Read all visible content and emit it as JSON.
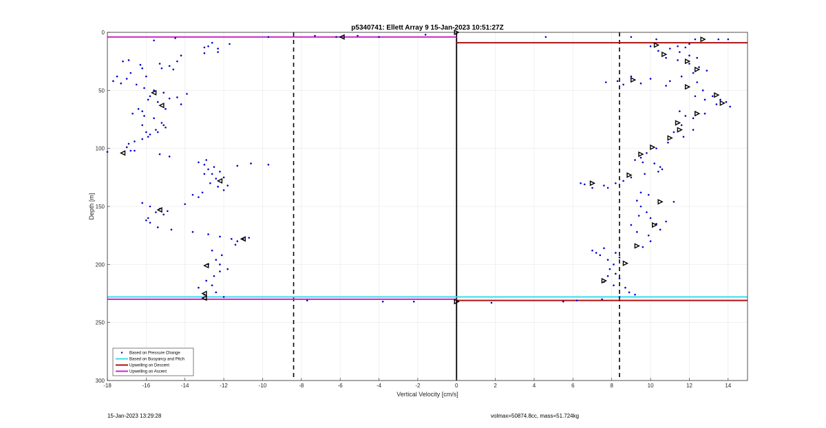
{
  "chart_data": {
    "type": "scatter",
    "title": "p5340741: Ellett Array 9 15-Jan-2023 10:51:27Z",
    "xlabel": "Vertical Velocity [cm/s]",
    "ylabel": "Depth [m]",
    "xlim": [
      -18,
      15
    ],
    "ylim": [
      0,
      300
    ],
    "y_reversed": true,
    "grid": true,
    "legend_position": "bottom-left",
    "xticks": [
      -18,
      -16,
      -14,
      -12,
      -10,
      -8,
      -6,
      -4,
      -2,
      0,
      2,
      4,
      6,
      8,
      10,
      12,
      14
    ],
    "yticks": [
      0,
      50,
      100,
      150,
      200,
      250,
      300
    ],
    "legend": [
      {
        "label": "Based on Pressure Change",
        "color": "#0000cc",
        "kind": "dot"
      },
      {
        "label": "Based on Buoyancy and Pitch",
        "color": "#33ddee",
        "kind": "line"
      },
      {
        "label": "Upwelling on Descent",
        "color": "#aa1111",
        "kind": "line"
      },
      {
        "label": "Upwelling on Ascent",
        "color": "#cc22cc",
        "kind": "line"
      }
    ],
    "series": [
      {
        "name": "Based on Pressure Change",
        "color": "#0000cc",
        "points": [
          [
            -15.6,
            7
          ],
          [
            -14.5,
            5
          ],
          [
            -13.0,
            18
          ],
          [
            -12.8,
            12
          ],
          [
            -12.6,
            9
          ],
          [
            -12.3,
            14
          ],
          [
            -12.3,
            17
          ],
          [
            -11.7,
            10
          ],
          [
            -13.0,
            13
          ],
          [
            -17.2,
            25
          ],
          [
            -16.9,
            24
          ],
          [
            -16.3,
            28
          ],
          [
            -15.3,
            27
          ],
          [
            -15.2,
            31
          ],
          [
            -14.8,
            29
          ],
          [
            -14.6,
            32
          ],
          [
            -14.4,
            25
          ],
          [
            -14.2,
            20
          ],
          [
            -17.5,
            38
          ],
          [
            -17.0,
            40
          ],
          [
            -16.5,
            45
          ],
          [
            -16.0,
            38
          ],
          [
            -16.8,
            35
          ],
          [
            -17.3,
            44
          ],
          [
            -16.2,
            31
          ],
          [
            -17.7,
            42
          ],
          [
            -16.1,
            48
          ],
          [
            -15.8,
            55
          ],
          [
            -15.6,
            50
          ],
          [
            -15.1,
            52
          ],
          [
            -14.8,
            57
          ],
          [
            -14.4,
            56
          ],
          [
            -14.2,
            62
          ],
          [
            -13.9,
            53
          ],
          [
            -15.9,
            58
          ],
          [
            -15.4,
            60
          ],
          [
            -15.0,
            66
          ],
          [
            -16.4,
            66
          ],
          [
            -16.7,
            70
          ],
          [
            -16.1,
            72
          ],
          [
            -15.6,
            74
          ],
          [
            -15.2,
            78
          ],
          [
            -15.0,
            82
          ],
          [
            -16.2,
            68
          ],
          [
            -16.2,
            80
          ],
          [
            -15.5,
            84
          ],
          [
            -15.8,
            88
          ],
          [
            -15.9,
            90
          ],
          [
            -16.2,
            92
          ],
          [
            -16.6,
            94
          ],
          [
            -16.9,
            96
          ],
          [
            -17.0,
            99
          ],
          [
            -15.4,
            86
          ],
          [
            -16.0,
            86
          ],
          [
            -15.1,
            80
          ],
          [
            -16.6,
            102
          ],
          [
            -16.8,
            102
          ],
          [
            -18.0,
            103
          ],
          [
            -15.3,
            105
          ],
          [
            -14.8,
            107
          ],
          [
            -13.3,
            112
          ],
          [
            -13.0,
            114
          ],
          [
            -12.8,
            118
          ],
          [
            -12.5,
            116
          ],
          [
            -12.2,
            120
          ],
          [
            -12.6,
            122
          ],
          [
            -12.4,
            126
          ],
          [
            -12.7,
            130
          ],
          [
            -12.3,
            133
          ],
          [
            -12.0,
            136
          ],
          [
            -11.8,
            132
          ],
          [
            -13.0,
            122
          ],
          [
            -12.0,
            125
          ],
          [
            -12.9,
            110
          ],
          [
            -11.3,
            115
          ],
          [
            -10.6,
            113
          ],
          [
            -9.7,
            114
          ],
          [
            -13.6,
            140
          ],
          [
            -13.3,
            142
          ],
          [
            -14.0,
            148
          ],
          [
            -13.1,
            138
          ],
          [
            -16.2,
            147
          ],
          [
            -15.8,
            150
          ],
          [
            -15.3,
            152
          ],
          [
            -15.1,
            157
          ],
          [
            -15.9,
            160
          ],
          [
            -15.8,
            164
          ],
          [
            -15.4,
            168
          ],
          [
            -14.7,
            170
          ],
          [
            -16.0,
            162
          ],
          [
            -15.5,
            155
          ],
          [
            -14.9,
            154
          ],
          [
            -13.6,
            172
          ],
          [
            -12.8,
            174
          ],
          [
            -12.2,
            176
          ],
          [
            -11.6,
            178
          ],
          [
            -11.3,
            180
          ],
          [
            -11.0,
            178
          ],
          [
            -10.7,
            177
          ],
          [
            -11.4,
            183
          ],
          [
            -12.6,
            188
          ],
          [
            -12.1,
            192
          ],
          [
            -12.4,
            196
          ],
          [
            -12.2,
            200
          ],
          [
            -11.8,
            204
          ],
          [
            -12.8,
            200
          ],
          [
            -12.2,
            206
          ],
          [
            -12.5,
            210
          ],
          [
            -12.9,
            214
          ],
          [
            -12.6,
            218
          ],
          [
            -13.3,
            220
          ],
          [
            -12.4,
            224
          ],
          [
            -12.0,
            228
          ],
          [
            -13.0,
            226
          ],
          [
            -9.7,
            4
          ],
          [
            -7.3,
            3
          ],
          [
            -6.2,
            4
          ],
          [
            -5.1,
            3
          ],
          [
            -4.0,
            4
          ],
          [
            -1.6,
            2
          ],
          [
            4.6,
            4
          ],
          [
            -7.7,
            231
          ],
          [
            -3.8,
            232
          ],
          [
            -2.2,
            232
          ],
          [
            1.8,
            233
          ],
          [
            5.5,
            232
          ],
          [
            9.0,
            4
          ],
          [
            10.3,
            6
          ],
          [
            12.3,
            6
          ],
          [
            13.5,
            6
          ],
          [
            14.0,
            6
          ],
          [
            10.0,
            12
          ],
          [
            10.4,
            16
          ],
          [
            11.0,
            14
          ],
          [
            11.5,
            17
          ],
          [
            12.0,
            20
          ],
          [
            12.4,
            22
          ],
          [
            11.8,
            13
          ],
          [
            11.4,
            12
          ],
          [
            12.0,
            10
          ],
          [
            10.8,
            22
          ],
          [
            11.4,
            24
          ],
          [
            12.0,
            27
          ],
          [
            12.5,
            30
          ],
          [
            12.9,
            33
          ],
          [
            12.2,
            35
          ],
          [
            11.6,
            38
          ],
          [
            11.0,
            42
          ],
          [
            10.8,
            46
          ],
          [
            10.0,
            40
          ],
          [
            9.5,
            44
          ],
          [
            9.0,
            38
          ],
          [
            7.7,
            43
          ],
          [
            8.3,
            42
          ],
          [
            8.6,
            45
          ],
          [
            12.4,
            43
          ],
          [
            12.7,
            50
          ],
          [
            13.2,
            55
          ],
          [
            13.6,
            58
          ],
          [
            13.9,
            60
          ],
          [
            14.1,
            64
          ],
          [
            13.4,
            62
          ],
          [
            12.8,
            58
          ],
          [
            12.3,
            55
          ],
          [
            11.5,
            68
          ],
          [
            11.8,
            72
          ],
          [
            12.2,
            74
          ],
          [
            12.8,
            70
          ],
          [
            11.6,
            80
          ],
          [
            11.2,
            86
          ],
          [
            11.7,
            90
          ],
          [
            12.2,
            84
          ],
          [
            10.9,
            95
          ],
          [
            10.3,
            100
          ],
          [
            9.8,
            104
          ],
          [
            9.5,
            108
          ],
          [
            9.2,
            110
          ],
          [
            9.6,
            112
          ],
          [
            10.2,
            113
          ],
          [
            10.5,
            116
          ],
          [
            10.6,
            118
          ],
          [
            10.4,
            120
          ],
          [
            9.7,
            122
          ],
          [
            9.0,
            125
          ],
          [
            8.6,
            128
          ],
          [
            8.2,
            130
          ],
          [
            7.6,
            132
          ],
          [
            7.0,
            134
          ],
          [
            6.6,
            131
          ],
          [
            6.4,
            130
          ],
          [
            7.8,
            134
          ],
          [
            9.5,
            138
          ],
          [
            9.9,
            140
          ],
          [
            9.3,
            145
          ],
          [
            9.5,
            150
          ],
          [
            9.8,
            155
          ],
          [
            10.0,
            160
          ],
          [
            10.3,
            165
          ],
          [
            10.5,
            170
          ],
          [
            9.9,
            175
          ],
          [
            10.0,
            180
          ],
          [
            9.6,
            185
          ],
          [
            9.3,
            172
          ],
          [
            9.0,
            166
          ],
          [
            9.4,
            158
          ],
          [
            11.2,
            146
          ],
          [
            10.8,
            163
          ],
          [
            7.0,
            188
          ],
          [
            7.4,
            192
          ],
          [
            7.8,
            196
          ],
          [
            8.1,
            200
          ],
          [
            7.9,
            204
          ],
          [
            8.2,
            208
          ],
          [
            8.4,
            212
          ],
          [
            8.1,
            218
          ],
          [
            8.7,
            220
          ],
          [
            8.9,
            224
          ],
          [
            9.2,
            226
          ],
          [
            7.8,
            210
          ],
          [
            7.6,
            215
          ],
          [
            7.2,
            190
          ],
          [
            7.6,
            186
          ],
          [
            8.2,
            190
          ],
          [
            8.4,
            194
          ],
          [
            6.2,
            231
          ],
          [
            7.5,
            230
          ],
          [
            8.4,
            228
          ]
        ]
      },
      {
        "name": "",
        "kind": "markers",
        "color": "#000000",
        "points": [
          [
            -5.9,
            4
          ],
          [
            -15.6,
            52
          ],
          [
            -15.2,
            63
          ],
          [
            -17.2,
            104
          ],
          [
            -12.2,
            128
          ],
          [
            -15.3,
            153
          ],
          [
            -11.0,
            178
          ],
          [
            -12.9,
            201
          ],
          [
            -13.0,
            225
          ],
          [
            -13.0,
            229
          ],
          [
            0,
            0
          ],
          [
            0,
            232
          ],
          [
            10.3,
            11
          ],
          [
            10.7,
            19
          ],
          [
            11.9,
            25
          ],
          [
            12.7,
            6
          ],
          [
            12.4,
            32
          ],
          [
            9.1,
            41
          ],
          [
            11.9,
            47
          ],
          [
            13.4,
            54
          ],
          [
            13.7,
            61
          ],
          [
            12.4,
            70
          ],
          [
            11.4,
            78
          ],
          [
            11.5,
            84
          ],
          [
            11.0,
            91
          ],
          [
            10.1,
            99
          ],
          [
            9.5,
            105
          ],
          [
            8.9,
            123
          ],
          [
            7.0,
            130
          ],
          [
            10.5,
            146
          ],
          [
            10.2,
            166
          ],
          [
            9.3,
            184
          ],
          [
            8.7,
            199
          ],
          [
            7.6,
            214
          ]
        ]
      }
    ],
    "lines": [
      {
        "name": "Upwelling on Ascent",
        "color": "#cc22cc",
        "from": -18,
        "to": 0,
        "depth": 4
      },
      {
        "name": "Upwelling on Descent",
        "color": "#aa1111",
        "from": 0,
        "to": 15,
        "depth": 9
      },
      {
        "name": "Based on Buoyancy and Pitch",
        "color": "#33ddee",
        "from": -18,
        "to": 15,
        "depth": 228
      },
      {
        "name": "Upwelling on Ascent",
        "color": "#cc22cc",
        "from": -18,
        "to": 0,
        "depth": 230
      },
      {
        "name": "Upwelling on Descent",
        "color": "#aa1111",
        "from": 0,
        "to": 15,
        "depth": 231
      }
    ],
    "dashed_verticals": [
      -8.4,
      8.4
    ],
    "zero_line": 0
  },
  "footer": {
    "timestamp": "15-Jan-2023 13:29:28",
    "mass_info": "volmax=50874.8cc, mass=51.724kg"
  }
}
